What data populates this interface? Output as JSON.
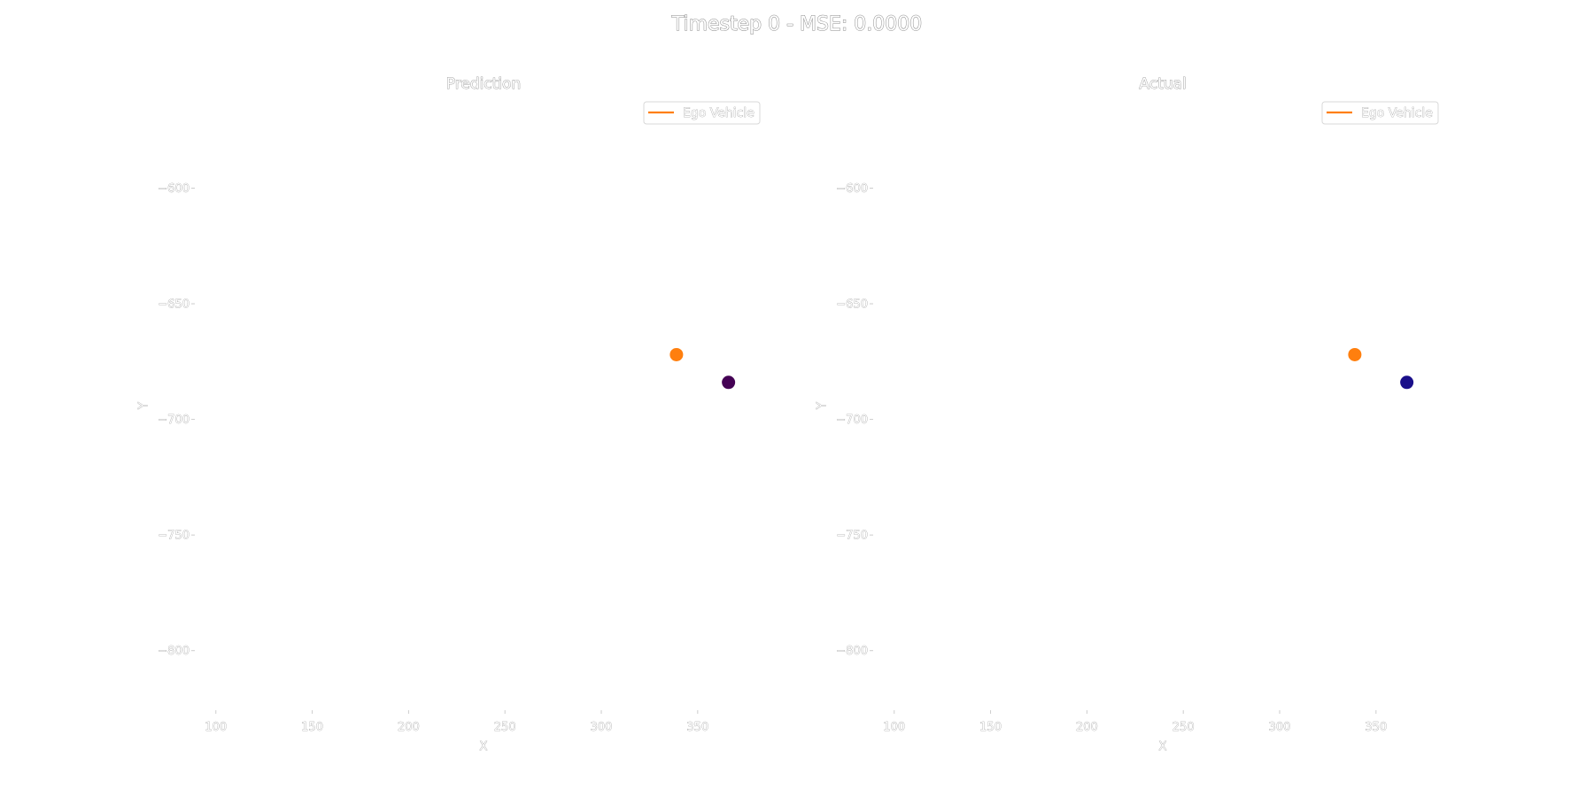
{
  "figure": {
    "suptitle": "Timestep 0 - MSE: 0.0000"
  },
  "chart_data": [
    {
      "type": "scatter",
      "title": "Prediction",
      "xlabel": "X",
      "ylabel": "Y",
      "xlim": [
        90,
        385
      ],
      "ylim": [
        -825,
        -560
      ],
      "xticks": [
        100,
        150,
        200,
        250,
        300,
        350
      ],
      "yticks": [
        -600,
        -650,
        -700,
        -750,
        -800
      ],
      "xtick_labels": [
        "100",
        "150",
        "200",
        "250",
        "300",
        "350"
      ],
      "ytick_labels": [
        "−600",
        "−650",
        "−700",
        "−750",
        "−800"
      ],
      "grid": false,
      "legend_position": "top-right",
      "legend": [
        {
          "label": "Ego Vehicle",
          "color": "#ff7f0e",
          "marker": "line"
        }
      ],
      "series": [
        {
          "name": "Ego Vehicle",
          "color": "#ff7f0e",
          "points": [
            {
              "x": 339,
              "y": -672
            }
          ]
        },
        {
          "color": "#440154",
          "points": [
            {
              "x": 366,
              "y": -684
            }
          ]
        }
      ]
    },
    {
      "type": "scatter",
      "title": "Actual",
      "xlabel": "X",
      "ylabel": "Y",
      "xlim": [
        90,
        385
      ],
      "ylim": [
        -825,
        -560
      ],
      "xticks": [
        100,
        150,
        200,
        250,
        300,
        350
      ],
      "yticks": [
        -600,
        -650,
        -700,
        -750,
        -800
      ],
      "xtick_labels": [
        "100",
        "150",
        "200",
        "250",
        "300",
        "350"
      ],
      "ytick_labels": [
        "−600",
        "−650",
        "−700",
        "−750",
        "−800"
      ],
      "grid": false,
      "legend_position": "top-right",
      "legend": [
        {
          "label": "Ego Vehicle",
          "color": "#ff7f0e",
          "marker": "line"
        }
      ],
      "series": [
        {
          "name": "Ego Vehicle",
          "color": "#ff7f0e",
          "points": [
            {
              "x": 339,
              "y": -672
            }
          ]
        },
        {
          "color": "#1a0f8a",
          "points": [
            {
              "x": 366,
              "y": -684
            }
          ]
        }
      ]
    }
  ]
}
